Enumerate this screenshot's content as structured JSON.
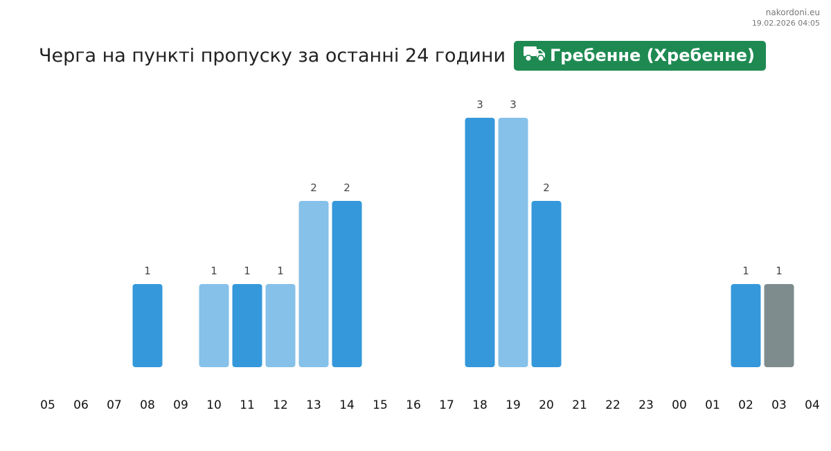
{
  "site": {
    "name": "nakordoni.eu",
    "timestamp": "19.02.2026 04:05"
  },
  "header": {
    "title": "Черга на пункті пропуску за останні 24 години",
    "checkpoint": "Гребенне (Хребенне)",
    "checkpoint_icon": "truck-icon",
    "badge_color": "#1e8a52"
  },
  "chart_data": {
    "type": "bar",
    "title": "Черга на пункті пропуску за останні 24 години",
    "xlabel": "",
    "ylabel": "",
    "categories": [
      "05",
      "06",
      "07",
      "08",
      "09",
      "10",
      "11",
      "12",
      "13",
      "14",
      "15",
      "16",
      "17",
      "18",
      "19",
      "20",
      "21",
      "22",
      "23",
      "00",
      "01",
      "02",
      "03",
      "04"
    ],
    "values": [
      0,
      0,
      0,
      1,
      0,
      1,
      1,
      1,
      2,
      2,
      0,
      0,
      0,
      3,
      3,
      2,
      0,
      0,
      0,
      0,
      0,
      1,
      1,
      0
    ],
    "bar_colors": [
      "#3498db",
      "#3498db",
      "#3498db",
      "#3498db",
      "#3498db",
      "#85c1e9",
      "#3498db",
      "#85c1e9",
      "#85c1e9",
      "#3498db",
      "#3498db",
      "#3498db",
      "#3498db",
      "#3498db",
      "#85c1e9",
      "#3498db",
      "#3498db",
      "#3498db",
      "#3498db",
      "#3498db",
      "#3498db",
      "#3498db",
      "#7f8c8d",
      "#3498db"
    ],
    "ylim": [
      0,
      3
    ],
    "grid": false,
    "legend": "none"
  }
}
